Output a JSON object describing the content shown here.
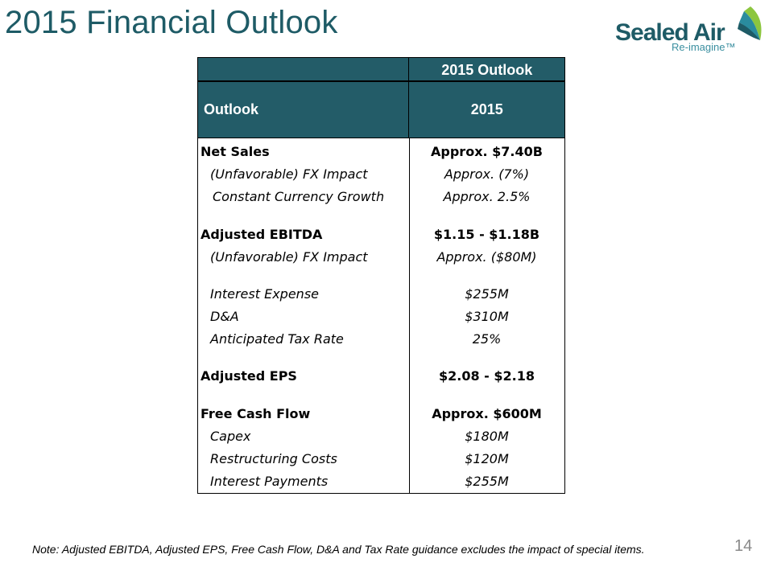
{
  "slide": {
    "title": "2015 Financial Outlook",
    "page_number": "14",
    "note": "Note:  Adjusted EBITDA, Adjusted EPS, Free Cash Flow,  D&A and Tax Rate guidance excludes the impact of special items."
  },
  "logo": {
    "name": "Sealed Air",
    "tagline": "Re-imagine™",
    "colors": {
      "text": "#1e5b66",
      "mark_green": "#8cc63f",
      "mark_teal": "#2a8c9e"
    }
  },
  "table": {
    "band_label": "2015 Outlook",
    "header": {
      "col1": "Outlook",
      "col2": "2015"
    },
    "header_color": "#235c68",
    "rows": [
      {
        "label": "Net Sales",
        "value": "Approx. $7.40B"
      },
      {
        "label": "(Unfavorable) FX Impact",
        "value": "Approx. (7%)"
      },
      {
        "label": "Constant Currency Growth",
        "value": "Approx. 2.5%"
      },
      {
        "label": "Adjusted EBITDA",
        "value": "$1.15 - $1.18B"
      },
      {
        "label": "(Unfavorable) FX Impact",
        "value": "Approx. ($80M)"
      },
      {
        "label": "Interest Expense",
        "value": "$255M"
      },
      {
        "label": "D&A",
        "value": "$310M"
      },
      {
        "label": "Anticipated Tax Rate",
        "value": "25%"
      },
      {
        "label": "Adjusted EPS",
        "value": "$2.08 - $2.18"
      },
      {
        "label": "Free Cash Flow",
        "value": "Approx. $600M"
      },
      {
        "label": "Capex",
        "value": "$180M"
      },
      {
        "label": "Restructuring Costs",
        "value": "$120M"
      },
      {
        "label": "Interest Payments",
        "value": "$255M"
      }
    ]
  }
}
